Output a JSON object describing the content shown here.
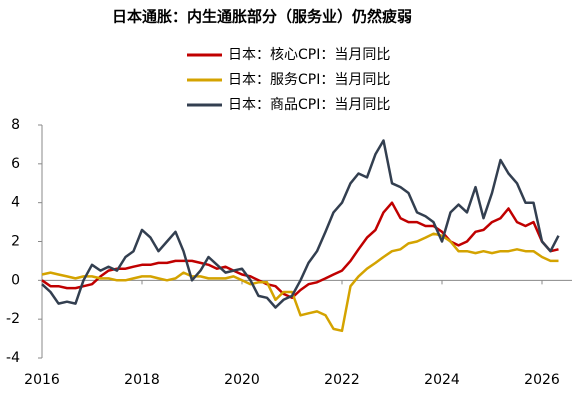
{
  "chart_data": {
    "type": "line",
    "title": "日本通胀：内生通胀部分（服务业）仍然疲弱",
    "x": [
      2016,
      2016.17,
      2016.33,
      2016.5,
      2016.67,
      2016.83,
      2017,
      2017.17,
      2017.33,
      2017.5,
      2017.67,
      2017.83,
      2018,
      2018.17,
      2018.33,
      2018.5,
      2018.67,
      2018.83,
      2019,
      2019.17,
      2019.33,
      2019.5,
      2019.67,
      2019.83,
      2020,
      2020.17,
      2020.33,
      2020.5,
      2020.67,
      2020.83,
      2021,
      2021.17,
      2021.33,
      2021.5,
      2021.67,
      2021.83,
      2022,
      2022.17,
      2022.33,
      2022.5,
      2022.67,
      2022.83,
      2023,
      2023.17,
      2023.33,
      2023.5,
      2023.67,
      2023.83,
      2024,
      2024.17,
      2024.33,
      2024.5,
      2024.67,
      2024.83,
      2025,
      2025.17,
      2025.33,
      2025.5,
      2025.67,
      2025.83,
      2026,
      2026.17,
      2026.33
    ],
    "series": [
      {
        "name": "日本：核心CPI：当月同比",
        "color": "#c00000",
        "values": [
          0.0,
          -0.3,
          -0.3,
          -0.4,
          -0.4,
          -0.3,
          -0.2,
          0.2,
          0.5,
          0.6,
          0.6,
          0.7,
          0.8,
          0.8,
          0.9,
          0.9,
          1.0,
          1.0,
          1.0,
          0.9,
          0.8,
          0.6,
          0.7,
          0.5,
          0.3,
          0.2,
          0.0,
          -0.2,
          -0.3,
          -0.7,
          -0.9,
          -0.5,
          -0.2,
          -0.1,
          0.1,
          0.3,
          0.5,
          1.0,
          1.6,
          2.2,
          2.6,
          3.5,
          4.0,
          3.2,
          3.0,
          3.0,
          2.8,
          2.8,
          2.5,
          2.0,
          1.8,
          2.0,
          2.5,
          2.6,
          3.0,
          3.2,
          3.7,
          3.0,
          2.8,
          3.0,
          2.0,
          1.5,
          1.6
        ]
      },
      {
        "name": "日本：服务CPI：当月同比",
        "color": "#d4a300",
        "values": [
          0.3,
          0.4,
          0.3,
          0.2,
          0.1,
          0.2,
          0.2,
          0.1,
          0.1,
          0.0,
          0.0,
          0.1,
          0.2,
          0.2,
          0.1,
          0.0,
          0.1,
          0.4,
          0.2,
          0.2,
          0.1,
          0.1,
          0.1,
          0.2,
          0.0,
          -0.2,
          -0.1,
          -0.1,
          -1.0,
          -0.6,
          -0.6,
          -1.8,
          -1.7,
          -1.6,
          -1.8,
          -2.5,
          -2.6,
          -0.3,
          0.2,
          0.6,
          0.9,
          1.2,
          1.5,
          1.6,
          1.9,
          2.0,
          2.2,
          2.4,
          2.3,
          2.0,
          1.5,
          1.5,
          1.4,
          1.5,
          1.4,
          1.5,
          1.5,
          1.6,
          1.5,
          1.5,
          1.2,
          1.0,
          1.0
        ]
      },
      {
        "name": "日本：商品CPI：当月同比",
        "color": "#333f50",
        "values": [
          -0.2,
          -0.6,
          -1.2,
          -1.1,
          -1.2,
          0.0,
          0.8,
          0.5,
          0.7,
          0.5,
          1.2,
          1.5,
          2.6,
          2.2,
          1.5,
          2.0,
          2.5,
          1.5,
          0.0,
          0.5,
          1.2,
          0.8,
          0.4,
          0.5,
          0.6,
          0.0,
          -0.8,
          -0.9,
          -1.4,
          -1.0,
          -0.8,
          0.0,
          0.9,
          1.5,
          2.5,
          3.5,
          4.0,
          5.0,
          5.5,
          5.3,
          6.5,
          7.2,
          5.0,
          4.8,
          4.5,
          3.5,
          3.3,
          3.0,
          2.0,
          3.5,
          3.9,
          3.5,
          4.8,
          3.2,
          4.5,
          6.2,
          5.5,
          5.0,
          4.0,
          4.0,
          2.0,
          1.5,
          2.3
        ]
      }
    ],
    "xlim": [
      2016,
      2026.6
    ],
    "xticks": [
      2016,
      2018,
      2020,
      2022,
      2024,
      2026
    ],
    "ylim": [
      -4,
      8
    ],
    "yticks": [
      -4,
      -2,
      0,
      2,
      4,
      6,
      8
    ]
  }
}
